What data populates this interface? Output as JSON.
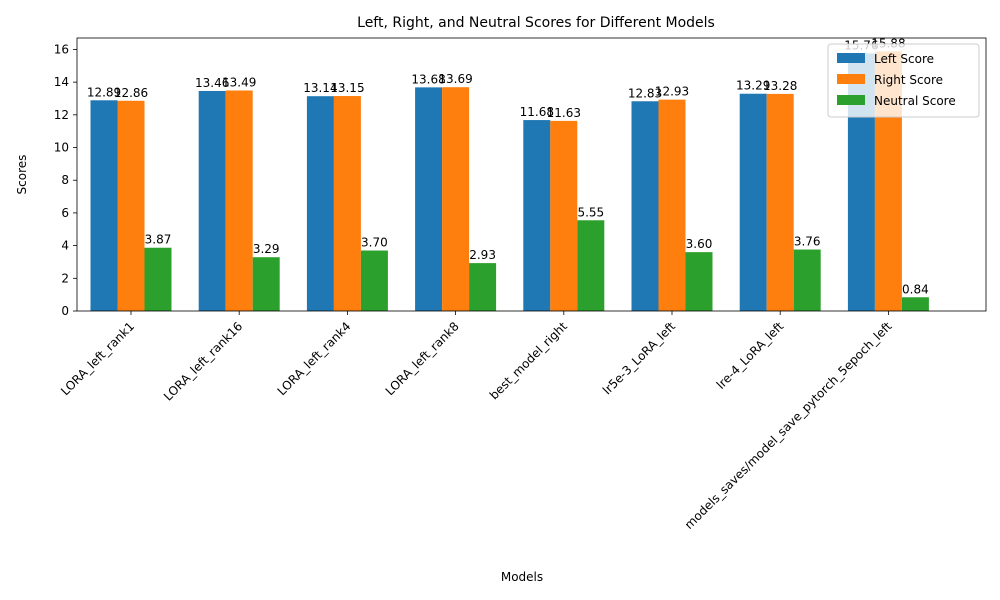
{
  "chart_data": {
    "type": "bar",
    "title": "Left, Right, and Neutral Scores for Different Models",
    "xlabel": "Models",
    "ylabel": "Scores",
    "ylim": [
      0,
      16.7
    ],
    "yticks": [
      0,
      2,
      4,
      6,
      8,
      10,
      12,
      14,
      16
    ],
    "grid": false,
    "legend_position": "top-right",
    "categories": [
      "LORA_left_rank1",
      "LORA_left_rank16",
      "LORA_left_rank4",
      "LORA_left_rank8",
      "best_model_right",
      "lr5e-3_LoRA_left",
      "lre-4_LoRA_left",
      "models_saves/model_save_pytorch_5epoch_left"
    ],
    "series": [
      {
        "name": "Left Score",
        "color": "#1f77b4",
        "values": [
          12.89,
          13.46,
          13.14,
          13.68,
          11.68,
          12.83,
          13.29,
          15.76
        ],
        "labels": [
          "12.89",
          "13.46",
          "13.14",
          "13.68",
          "11.68",
          "12.83",
          "13.29",
          "15.76"
        ]
      },
      {
        "name": "Right Score",
        "color": "#ff7f0e",
        "values": [
          12.86,
          13.49,
          13.15,
          13.69,
          11.63,
          12.93,
          13.28,
          15.88
        ],
        "labels": [
          "12.86",
          "13.49",
          "13.15",
          "13.69",
          "11.63",
          "12.93",
          "13.28",
          "15.88"
        ]
      },
      {
        "name": "Neutral Score",
        "color": "#2ca02c",
        "values": [
          3.87,
          3.29,
          3.7,
          2.93,
          5.55,
          3.6,
          3.76,
          0.84
        ],
        "labels": [
          "3.87",
          "3.29",
          "3.70",
          "2.93",
          "5.55",
          "3.60",
          "3.76",
          "0.84"
        ]
      }
    ]
  }
}
